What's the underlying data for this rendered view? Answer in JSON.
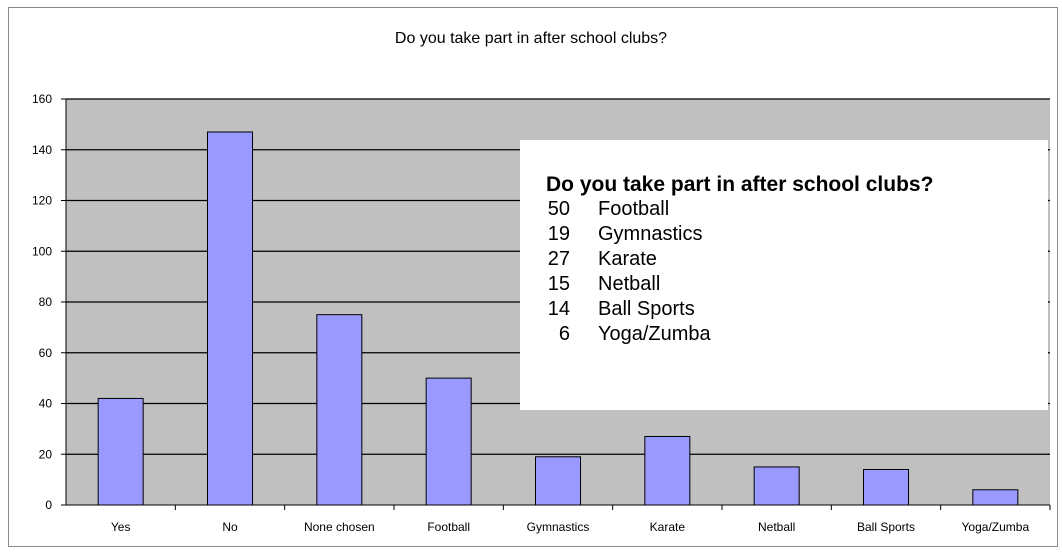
{
  "chart_data": {
    "type": "bar",
    "title": "Do you take part in after school clubs?",
    "categories": [
      "Yes",
      "No",
      "None chosen",
      "Football",
      "Gymnastics",
      "Karate",
      "Netball",
      "Ball Sports",
      "Yoga/Zumba"
    ],
    "values": [
      42,
      147,
      75,
      50,
      19,
      27,
      15,
      14,
      6
    ],
    "ylim": [
      0,
      160
    ],
    "yticks": [
      "0",
      "20",
      "40",
      "60",
      "80",
      "100",
      "120",
      "140",
      "160"
    ],
    "grid": true,
    "colors": {
      "bar": "#9999ff",
      "plot_bg": "#c0c0c0",
      "grid": "#000000"
    }
  },
  "inset_table": {
    "title": "Do you take part in after school clubs?",
    "rows": [
      {
        "count": "50",
        "label": "Football"
      },
      {
        "count": "19",
        "label": "Gymnastics"
      },
      {
        "count": "27",
        "label": "Karate"
      },
      {
        "count": "15",
        "label": "Netball"
      },
      {
        "count": "14",
        "label": "Ball Sports"
      },
      {
        "count": "6",
        "label": "Yoga/Zumba"
      }
    ]
  }
}
